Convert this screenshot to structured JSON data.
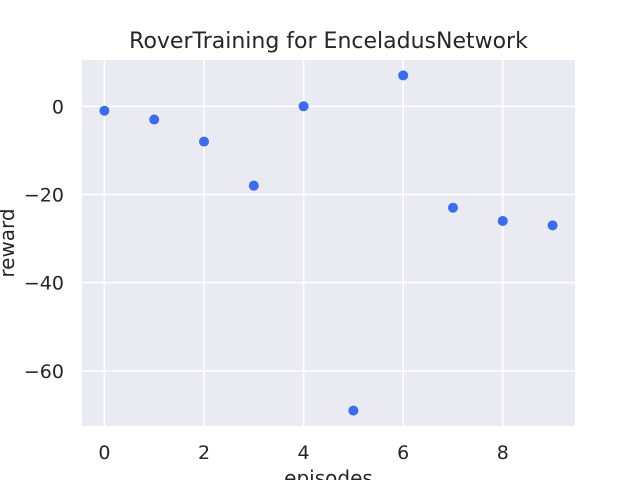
{
  "chart_data": {
    "type": "scatter",
    "title": "RoverTraining for EnceladusNetwork",
    "xlabel": "episodes",
    "ylabel": "reward",
    "x": [
      0,
      1,
      2,
      3,
      4,
      5,
      6,
      7,
      8,
      9
    ],
    "y": [
      -1,
      -3,
      -8,
      -18,
      0,
      -69,
      7,
      -23,
      -26,
      -27
    ],
    "xlim": [
      -0.45,
      9.45
    ],
    "ylim": [
      -72.5,
      10.5
    ],
    "xticks": [
      0,
      2,
      4,
      6,
      8
    ],
    "yticks": [
      0,
      -20,
      -40,
      -60
    ],
    "xtick_labels": [
      "0",
      "2",
      "4",
      "6",
      "8"
    ],
    "ytick_labels": [
      "0",
      "−20",
      "−40",
      "−60"
    ],
    "grid": true,
    "legend": "none",
    "colors": {
      "background": "#eaeaf2",
      "grid": "#ffffff",
      "marker": "#3b6cf0",
      "text": "#262626"
    }
  }
}
